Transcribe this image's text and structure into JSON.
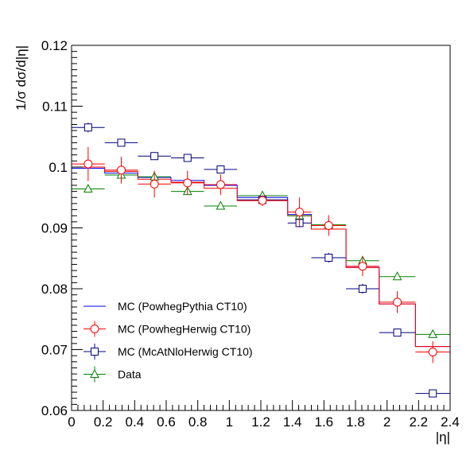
{
  "chart_data": {
    "type": "line",
    "xlabel": "|η|",
    "ylabel": "1/σ dσ/d|η|",
    "xlim": [
      0,
      2.4
    ],
    "ylim": [
      0.06,
      0.12
    ],
    "x_ticks": [
      0,
      0.2,
      0.4,
      0.6,
      0.8,
      1,
      1.2,
      1.4,
      1.6,
      1.8,
      2,
      2.2,
      2.4
    ],
    "x_tick_labels": [
      "0",
      "0.2",
      "0.4",
      "0.6",
      "0.8",
      "1",
      "1.2",
      "1.4",
      "1.6",
      "1.8",
      "2",
      "2.2",
      "2.4"
    ],
    "y_ticks": [
      0.06,
      0.07,
      0.08,
      0.09,
      0.1,
      0.11,
      0.12
    ],
    "y_tick_labels": [
      "0.06",
      "0.07",
      "0.08",
      "0.09",
      "0.1",
      "0.11",
      "0.12"
    ],
    "bin_edges": [
      0,
      0.21,
      0.42,
      0.63,
      0.84,
      1.05,
      1.37,
      1.52,
      1.74,
      1.95,
      2.18,
      2.4
    ],
    "legend_position": "bottom-left",
    "series": [
      {
        "name": "MC (PowhegPythia CT10)",
        "style": "histogram",
        "color": "#0000ff",
        "values": [
          0.0998,
          0.099,
          0.0983,
          0.0978,
          0.097,
          0.095,
          0.0922,
          0.0898,
          0.0835,
          0.0775,
          0.0705
        ]
      },
      {
        "name": "MC (PowhegHerwig CT10)",
        "style": "histogram-markers",
        "marker": "circle",
        "color": "#ff0000",
        "values": [
          0.1,
          0.0993,
          0.098,
          0.0975,
          0.0965,
          0.0945,
          0.092,
          0.0898,
          0.0835,
          0.0775,
          0.0705
        ],
        "points": [
          0.1005,
          0.0995,
          0.0972,
          0.0974,
          0.0971,
          0.0945,
          0.0926,
          0.0904,
          0.0837,
          0.0778,
          0.0696
        ],
        "errors": [
          0.0028,
          0.0022,
          0.0022,
          0.002,
          0.0017,
          0.0009,
          0.0024,
          0.0017,
          0.0016,
          0.0018,
          0.0018
        ]
      },
      {
        "name": "MC (McAtNloHerwig CT10)",
        "style": "markers",
        "marker": "square",
        "color": "#000080",
        "points": [
          0.1065,
          0.104,
          0.1018,
          0.1015,
          0.0996,
          0.0946,
          0.0908,
          0.0851,
          0.08,
          0.0728,
          0.0628
        ],
        "errors": [
          0.0008,
          0.0006,
          0.0005,
          0.0005,
          0.0005,
          0.0005,
          0.0007,
          0.0008,
          0.0008,
          0.0006,
          0.0003
        ]
      },
      {
        "name": "Data",
        "style": "markers",
        "marker": "triangle",
        "color": "#008000",
        "points": [
          0.0964,
          0.0987,
          0.0984,
          0.096,
          0.0936,
          0.0953,
          0.092,
          0.0905,
          0.0846,
          0.082,
          0.0725
        ],
        "errors": [
          0.0002,
          0.0002,
          0.0002,
          0.0002,
          0.0002,
          0.0002,
          0.0002,
          0.0002,
          0.0002,
          0.0002,
          0.0002
        ]
      }
    ]
  }
}
